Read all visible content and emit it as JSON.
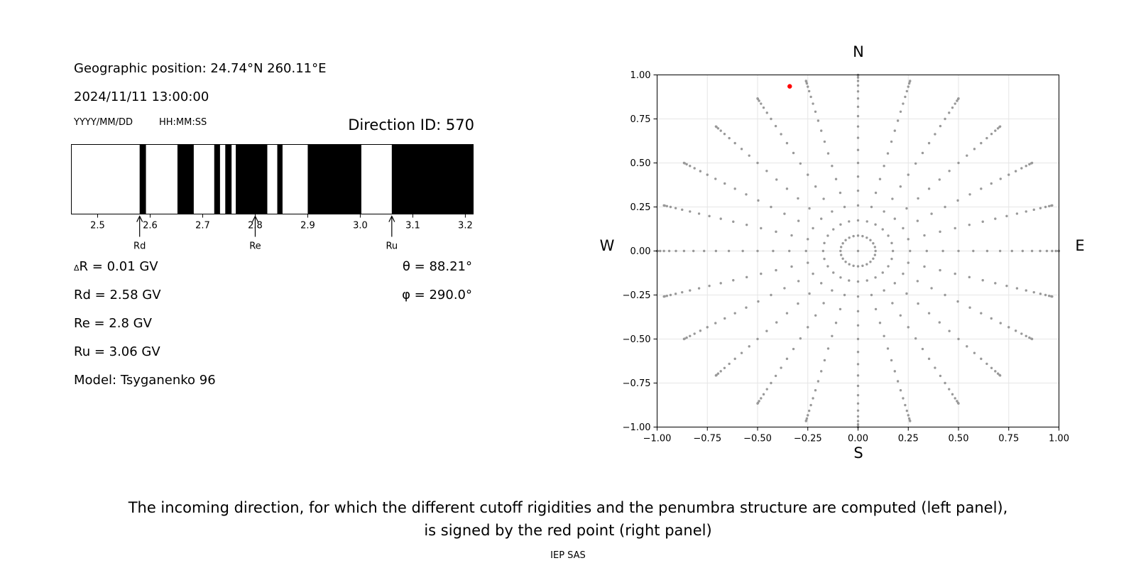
{
  "info": {
    "geo_position": "Geographic position: 24.74°N 260.11°E",
    "datetime": "2024/11/11 13:00:00",
    "date_format": "YYYY/MM/DD",
    "time_format": "HH:MM:SS",
    "direction_id": "Direction ID: 570"
  },
  "values": {
    "delta_r_symbol": "Δ",
    "delta_r": "R = 0.01 GV",
    "rd": "Rd = 2.58 GV",
    "re": "Re = 2.8 GV",
    "ru": "Ru = 3.06 GV",
    "model": "Model: Tsyganenko 96",
    "theta": "θ = 88.21°",
    "phi": "φ = 290.0°"
  },
  "chart_data": [
    {
      "type": "penumbra",
      "xlim": [
        2.45,
        3.215
      ],
      "ticks": [
        "2.5",
        "2.6",
        "2.7",
        "2.8",
        "2.9",
        "3.0",
        "3.1",
        "3.2"
      ],
      "tick_values": [
        2.5,
        2.6,
        2.7,
        2.8,
        2.9,
        3.0,
        3.1,
        3.2
      ],
      "forbidden_bands": [
        [
          2.58,
          2.592
        ],
        [
          2.652,
          2.683
        ],
        [
          2.722,
          2.733
        ],
        [
          2.743,
          2.755
        ],
        [
          2.763,
          2.823
        ],
        [
          2.842,
          2.852
        ],
        [
          2.9,
          3.002
        ],
        [
          3.06,
          3.215
        ]
      ],
      "markers": [
        {
          "label": "Rd",
          "value": 2.58
        },
        {
          "label": "Re",
          "value": 2.8
        },
        {
          "label": "Ru",
          "value": 3.06
        }
      ]
    },
    {
      "type": "scatter",
      "xlim": [
        -1.0,
        1.0
      ],
      "ylim": [
        -1.0,
        1.0
      ],
      "xticks": [
        "−1.00",
        "−0.75",
        "−0.50",
        "−0.25",
        "0.00",
        "0.25",
        "0.50",
        "0.75",
        "1.00"
      ],
      "yticks": [
        "1.00",
        "0.75",
        "0.50",
        "0.25",
        "0.00",
        "−0.25",
        "−0.50",
        "−0.75",
        "−1.00"
      ],
      "xtick_values": [
        -1.0,
        -0.75,
        -0.5,
        -0.25,
        0.0,
        0.25,
        0.5,
        0.75,
        1.0
      ],
      "ytick_values": [
        1.0,
        0.75,
        0.5,
        0.25,
        0.0,
        -0.25,
        -0.5,
        -0.75,
        -1.0
      ],
      "grid": true,
      "compass": {
        "north": "N",
        "south": "S",
        "west": "W",
        "east": "E"
      },
      "grid_points": {
        "azimuth_step_deg": 15,
        "zenith_step_deg": 5,
        "zenith_max_deg": 90,
        "color": "#999999"
      },
      "highlight_point": {
        "x": -0.34,
        "y": 0.935,
        "color": "#ff0000"
      }
    }
  ],
  "caption": {
    "line1": "The incoming direction, for which the different cutoff rigidities and the penumbra structure are computed (left panel),",
    "line2": "is signed by the red point (right panel)",
    "credit": "IEP SAS"
  }
}
